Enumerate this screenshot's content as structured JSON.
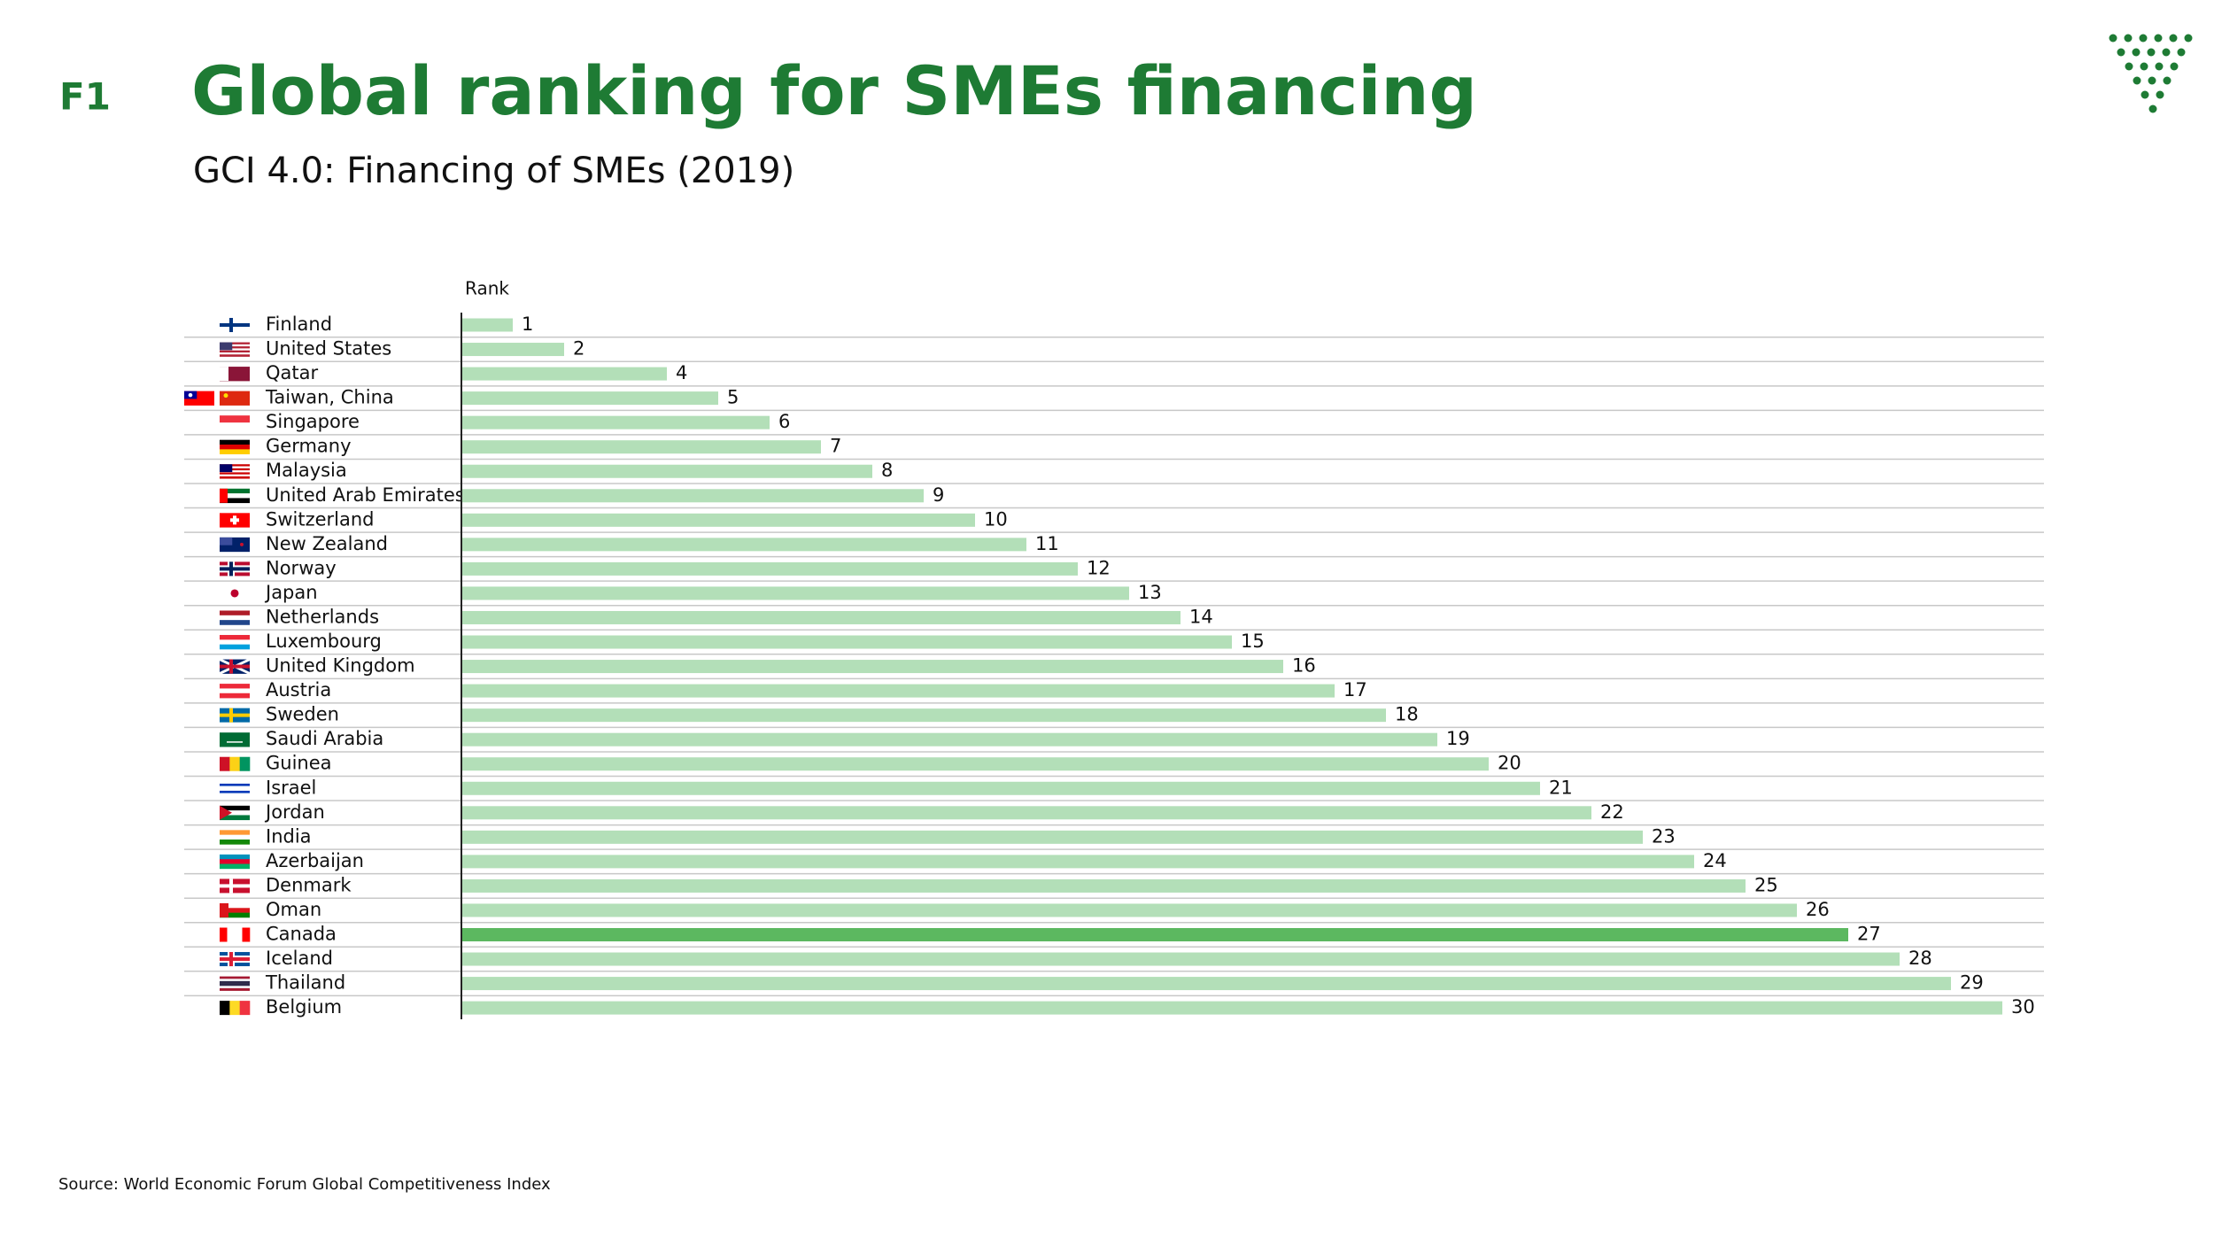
{
  "header": {
    "section": "F1",
    "title": "Global ranking for SMEs financing"
  },
  "chart_data": {
    "type": "bar",
    "orientation": "horizontal",
    "title": "GCI 4.0: Financing of SMEs (2019)",
    "value_axis_label": "Rank",
    "categories": [
      "Finland",
      "United States",
      "Qatar",
      "Taiwan, China",
      "Singapore",
      "Germany",
      "Malaysia",
      "United Arab Emirates",
      "Switzerland",
      "New Zealand",
      "Norway",
      "Japan",
      "Netherlands",
      "Luxembourg",
      "United Kingdom",
      "Austria",
      "Sweden",
      "Saudi Arabia",
      "Guinea",
      "Israel",
      "Jordan",
      "India",
      "Azerbaijan",
      "Denmark",
      "Oman",
      "Canada",
      "Iceland",
      "Thailand",
      "Belgium"
    ],
    "values": [
      1,
      2,
      4,
      5,
      6,
      7,
      8,
      9,
      10,
      11,
      12,
      13,
      14,
      15,
      16,
      17,
      18,
      19,
      20,
      21,
      22,
      23,
      24,
      25,
      26,
      27,
      28,
      29,
      30
    ],
    "colors": [
      "#b3dfb8",
      "#b3dfb8",
      "#b3dfb8",
      "#b3dfb8",
      "#b3dfb8",
      "#b3dfb8",
      "#b3dfb8",
      "#b3dfb8",
      "#b3dfb8",
      "#b3dfb8",
      "#b3dfb8",
      "#b3dfb8",
      "#b3dfb8",
      "#b3dfb8",
      "#b3dfb8",
      "#b3dfb8",
      "#b3dfb8",
      "#b3dfb8",
      "#b3dfb8",
      "#b3dfb8",
      "#b3dfb8",
      "#b3dfb8",
      "#b3dfb8",
      "#b3dfb8",
      "#b3dfb8",
      "#5cb860",
      "#b3dfb8",
      "#b3dfb8",
      "#b3dfb8"
    ],
    "xlim": [
      0,
      31
    ]
  },
  "source": "Source: World Economic Forum Global Competitiveness Index"
}
